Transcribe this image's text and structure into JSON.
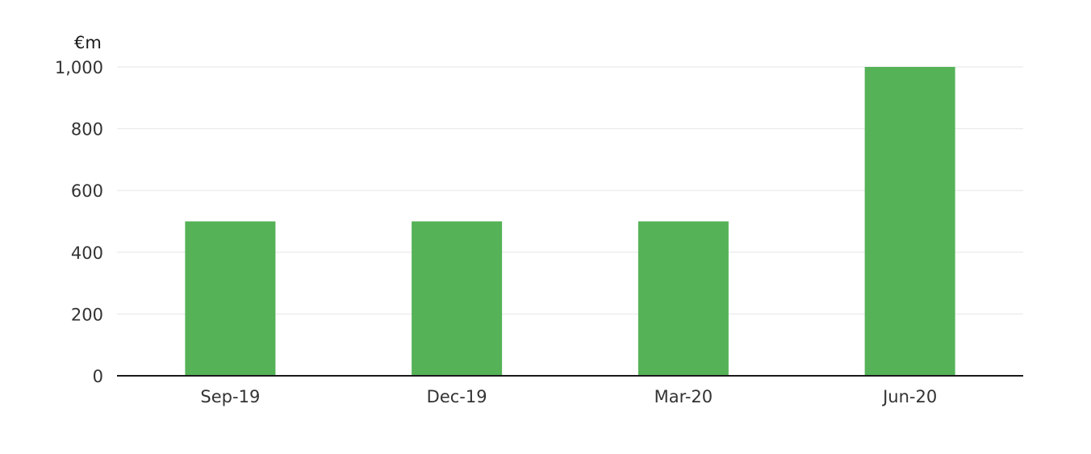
{
  "chart_data": {
    "type": "bar",
    "unit_label": "€m",
    "categories": [
      "Sep-19",
      "Dec-19",
      "Mar-20",
      "Jun-20"
    ],
    "values": [
      500,
      500,
      500,
      1000
    ],
    "yticks": [
      "0",
      "200",
      "400",
      "600",
      "800",
      "1,000"
    ],
    "ytick_values": [
      0,
      200,
      400,
      600,
      800,
      1000
    ],
    "ylim": [
      0,
      1000
    ],
    "grid": true,
    "legend": "none",
    "bar_color": "#55b257"
  }
}
